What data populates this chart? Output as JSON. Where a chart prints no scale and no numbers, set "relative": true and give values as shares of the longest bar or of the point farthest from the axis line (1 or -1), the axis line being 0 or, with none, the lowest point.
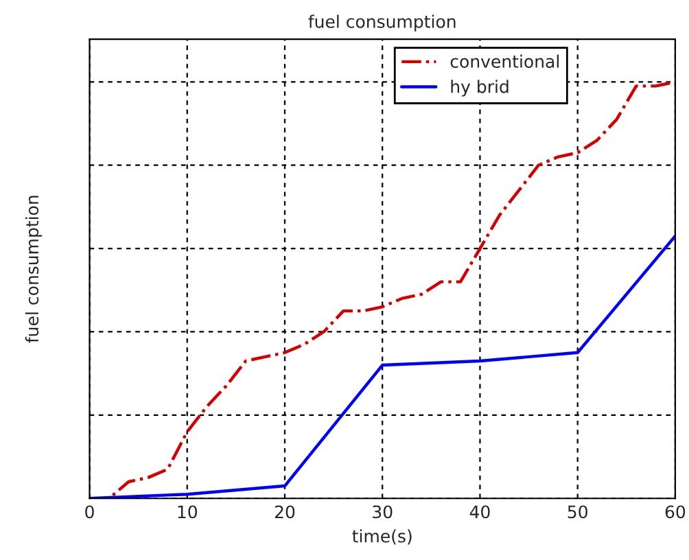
{
  "chart_data": {
    "type": "line",
    "title": "fuel consumption",
    "xlabel": "time(s)",
    "ylabel": "fuel consumption",
    "relative": true,
    "xlim": [
      0,
      60
    ],
    "xticks": [
      0,
      10,
      20,
      30,
      40,
      50,
      60
    ],
    "grid": true,
    "legend": "top right",
    "tick_labels": "x",
    "series": [
      {
        "name": "conventional",
        "color": "#d40000",
        "line_style": "dashdot",
        "x": [
          0,
          2,
          4,
          6,
          8,
          10,
          12,
          14,
          16,
          18,
          20,
          22,
          24,
          26,
          28,
          30,
          32,
          34,
          36,
          38,
          40,
          42,
          44,
          46,
          48,
          50,
          52,
          54,
          56,
          58,
          60
        ],
        "values": [
          0,
          0.0,
          0.04,
          0.05,
          0.07,
          0.16,
          0.22,
          0.27,
          0.33,
          0.34,
          0.35,
          0.37,
          0.4,
          0.45,
          0.45,
          0.46,
          0.48,
          0.49,
          0.52,
          0.52,
          0.6,
          0.68,
          0.74,
          0.8,
          0.82,
          0.83,
          0.86,
          0.91,
          0.99,
          0.99,
          1
        ]
      },
      {
        "name": "hy brid",
        "color": "#0000ff",
        "line_style": "solid",
        "x": [
          0,
          10,
          20,
          30,
          40,
          50,
          60
        ],
        "values": [
          0.0,
          0.01,
          0.03,
          0.32,
          0.33,
          0.35,
          0.63
        ]
      }
    ]
  }
}
